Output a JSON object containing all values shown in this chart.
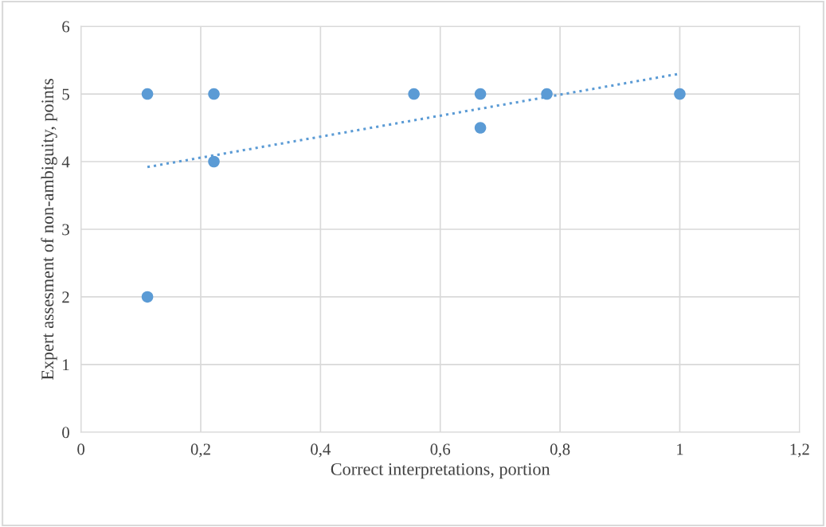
{
  "chart_data": {
    "type": "scatter",
    "xlabel": "Correct interpretations, portion",
    "ylabel": "Expert assesment of non-ambiguity, points",
    "xlim": [
      0,
      1.2
    ],
    "ylim": [
      0,
      6
    ],
    "xticks": [
      0,
      {
        "value": 0.2,
        "label": "0,2"
      },
      {
        "value": 0.4,
        "label": "0,4"
      },
      {
        "value": 0.6,
        "label": "0,6"
      },
      {
        "value": 0.8,
        "label": "0,8"
      },
      1,
      {
        "value": 1.2,
        "label": "1,2"
      }
    ],
    "yticks": [
      0,
      1,
      2,
      3,
      4,
      5,
      6
    ],
    "grid": true,
    "series": [
      {
        "color": "#5b9bd5",
        "marker": "circle",
        "x": [
          0.111,
          0.111,
          0.222,
          0.222,
          0.556,
          0.667,
          0.667,
          0.778,
          1.0
        ],
        "values": [
          5,
          2,
          5,
          4,
          5,
          5,
          4.5,
          5,
          5
        ]
      },
      {
        "type": "line",
        "color": "#5b9bd5",
        "line_style": "dotted",
        "marker": "none",
        "x": [
          0.111,
          1.0
        ],
        "values": [
          3.92,
          5.3
        ]
      }
    ]
  }
}
